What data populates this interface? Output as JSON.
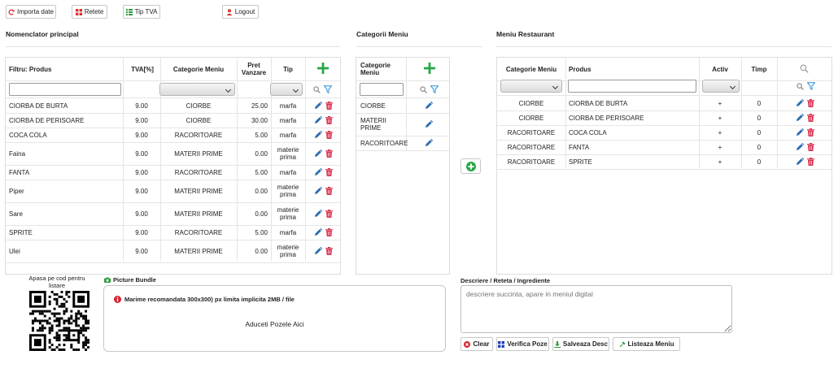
{
  "toolbar": {
    "import": "Importa date",
    "recipes": "Retete",
    "vat": "Tip TVA",
    "logout": "Logout"
  },
  "sections": {
    "nomenclator": "Nomenclator principal",
    "categories": "Categorii Meniu",
    "menu": "Meniu Restaurant"
  },
  "nomenclator": {
    "headers": {
      "filter": "Filtru: Produs",
      "vat": "TVA[%]",
      "category": "Categorie Meniu",
      "price_1": "Pret",
      "price_2": "Vanzare",
      "type": "Tip"
    },
    "rows": [
      {
        "name": "CIORBA DE BURTA",
        "vat": "9.00",
        "cat": "CIORBE",
        "price": "25.00",
        "type1": "marfa",
        "type2": ""
      },
      {
        "name": "CIORBA DE PERISOARE",
        "vat": "9.00",
        "cat": "CIORBE",
        "price": "30.00",
        "type1": "marfa",
        "type2": ""
      },
      {
        "name": "COCA COLA",
        "vat": "9.00",
        "cat": "RACORITOARE",
        "price": "5.00",
        "type1": "marfa",
        "type2": ""
      },
      {
        "name": "Faina",
        "vat": "9.00",
        "cat": "MATERII PRIME",
        "price": "0.00",
        "type1": "materie",
        "type2": "prima"
      },
      {
        "name": "FANTA",
        "vat": "9.00",
        "cat": "RACORITOARE",
        "price": "5.00",
        "type1": "marfa",
        "type2": ""
      },
      {
        "name": "Piper",
        "vat": "9.00",
        "cat": "MATERII PRIME",
        "price": "0.00",
        "type1": "materie",
        "type2": "prima"
      },
      {
        "name": "Sare",
        "vat": "9.00",
        "cat": "MATERII PRIME",
        "price": "0.00",
        "type1": "materie",
        "type2": "prima"
      },
      {
        "name": "SPRITE",
        "vat": "9.00",
        "cat": "RACORITOARE",
        "price": "5.00",
        "type1": "marfa",
        "type2": ""
      },
      {
        "name": "Ulei",
        "vat": "9.00",
        "cat": "MATERII PRIME",
        "price": "0.00",
        "type1": "materie",
        "type2": "prima"
      }
    ]
  },
  "categories": {
    "header_1": "Categorie",
    "header_2": "Meniu",
    "rows": [
      {
        "l1": "CIORBE",
        "l2": ""
      },
      {
        "l1": "MATERII",
        "l2": "PRIME"
      },
      {
        "l1": "RACORITOARE",
        "l2": ""
      }
    ]
  },
  "menu": {
    "headers": {
      "category": "Categorie Meniu",
      "product": "Produs",
      "active": "Activ",
      "time": "Timp"
    },
    "rows": [
      {
        "cat": "CIORBE",
        "product": "CIORBA DE BURTA",
        "active": "+",
        "time": "0"
      },
      {
        "cat": "CIORBE",
        "product": "CIORBA DE PERISOARE",
        "active": "+",
        "time": "0"
      },
      {
        "cat": "RACORITOARE",
        "product": "COCA COLA",
        "active": "+",
        "time": "0"
      },
      {
        "cat": "RACORITOARE",
        "product": "FANTA",
        "active": "+",
        "time": "0"
      },
      {
        "cat": "RACORITOARE",
        "product": "SPRITE",
        "active": "+",
        "time": "0"
      }
    ]
  },
  "qr": {
    "label_1": "Apasa pe cod pentru",
    "label_2": "listare"
  },
  "pictures": {
    "title": "Picture Bundle",
    "notice": "Marime recomandata 300x300) px limita implicita 2MB / file",
    "drop": "Aduceti Pozele Aici"
  },
  "description": {
    "title": "Descriere / Reteta / Ingrediente",
    "placeholder": "descriere succinta, apare in meniul digital",
    "buttons": {
      "clear": "Clear",
      "verify": "Verifica Poze",
      "save": "Salveaza Desc",
      "list": "Listeaza Meniu"
    }
  },
  "colors": {
    "accent_green": "#27a745",
    "pencil_blue": "#2b6cb0",
    "trash_red": "#d9314e",
    "filter_blue": "#2a8fd6"
  }
}
